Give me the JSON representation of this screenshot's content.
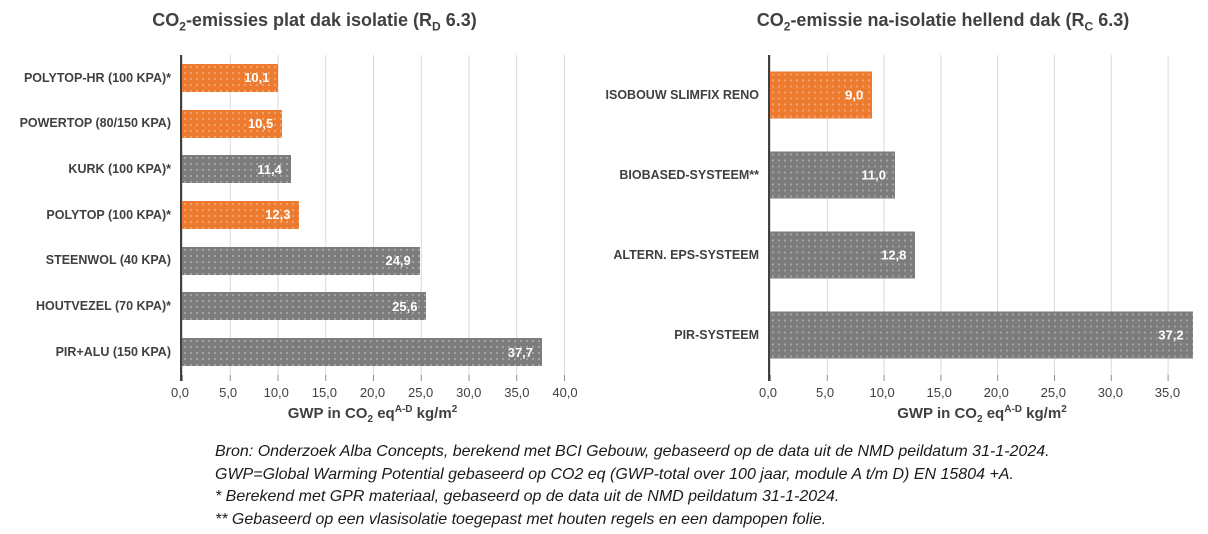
{
  "colors": {
    "orange": "#ED7B2F",
    "gray": "#7C7C7C",
    "grid": "#D9D9D9",
    "axis": "#404040"
  },
  "chart_data": [
    {
      "type": "bar",
      "orientation": "horizontal",
      "title": {
        "p1": "CO",
        "sub1": "2",
        "p2": "-emissies plat dak isolatie (R",
        "sub2": "D",
        "p3": " 6.3)"
      },
      "xlabel": {
        "p1": "GWP in CO",
        "sub1": "2",
        "p2": " eq",
        "sup1": "A-D",
        "p3": " kg/m",
        "sup2": "2"
      },
      "xlim": [
        0,
        40
      ],
      "tick_step": 5,
      "grid": true,
      "ticks": [
        "0,0",
        "5,0",
        "10,0",
        "15,0",
        "20,0",
        "25,0",
        "30,0",
        "35,0",
        "40,0"
      ],
      "bars": [
        {
          "label": "POLYTOP-HR (100 KPA)*",
          "value": 10.1,
          "display": "10,1",
          "color": "orange"
        },
        {
          "label": "POWERTOP (80/150 KPA)",
          "value": 10.5,
          "display": "10,5",
          "color": "orange"
        },
        {
          "label": "KURK (100 KPA)*",
          "value": 11.4,
          "display": "11,4",
          "color": "gray"
        },
        {
          "label": "POLYTOP (100 KPA)*",
          "value": 12.3,
          "display": "12,3",
          "color": "orange"
        },
        {
          "label": "STEENWOL (40 KPA)",
          "value": 24.9,
          "display": "24,9",
          "color": "gray"
        },
        {
          "label": "HOUTVEZEL (70 KPA)*",
          "value": 25.6,
          "display": "25,6",
          "color": "gray"
        },
        {
          "label": "PIR+ALU (150 KPA)",
          "value": 37.7,
          "display": "37,7",
          "color": "gray"
        }
      ]
    },
    {
      "type": "bar",
      "orientation": "horizontal",
      "title": {
        "p1": "CO",
        "sub1": "2",
        "p2": "-emissie na-isolatie hellend dak (R",
        "sub2": "C",
        "p3": " 6.3)"
      },
      "xlabel": {
        "p1": "GWP in CO",
        "sub1": "2",
        "p2": " eq",
        "sup1": "A-D",
        "p3": " kg/m",
        "sup2": "2"
      },
      "xlim": [
        0,
        37.5
      ],
      "tick_step": 5,
      "grid": true,
      "ticks": [
        "0,0",
        "5,0",
        "10,0",
        "15,0",
        "20,0",
        "25,0",
        "30,0",
        "35,0"
      ],
      "bars": [
        {
          "label": "ISOBOUW SLIMFIX RENO",
          "value": 9.0,
          "display": "9,0",
          "color": "orange"
        },
        {
          "label": "BIOBASED-SYSTEEM**",
          "value": 11.0,
          "display": "11,0",
          "color": "gray"
        },
        {
          "label": "ALTERN. EPS-SYSTEEM",
          "value": 12.8,
          "display": "12,8",
          "color": "gray"
        },
        {
          "label": "PIR-SYSTEEM",
          "value": 37.2,
          "display": "37,2",
          "color": "gray"
        }
      ]
    }
  ],
  "footnotes": [
    "Bron: Onderzoek Alba Concepts, berekend met BCI Gebouw, gebaseerd op de data uit de NMD peildatum 31-1-2024.",
    "GWP=Global Warming Potential gebaseerd op CO2 eq (GWP-total over 100 jaar, module A t/m D) EN 15804 +A.",
    "* Berekend met GPR materiaal, gebaseerd op de data uit de NMD peildatum 31-1-2024.",
    "** Gebaseerd op een vlasisolatie toegepast met houten regels en een dampopen folie."
  ]
}
